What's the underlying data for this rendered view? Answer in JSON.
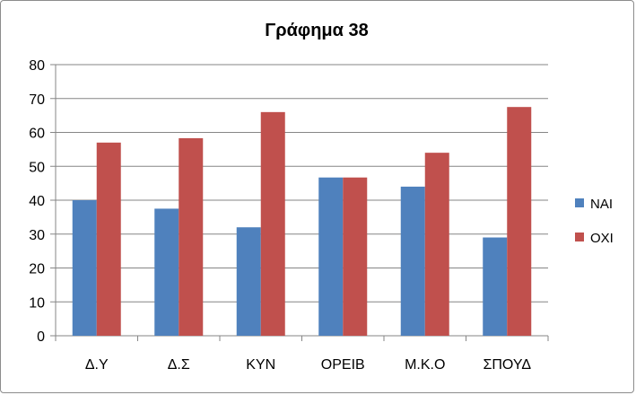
{
  "chart_data": {
    "type": "bar",
    "title": "Γράφημα 38",
    "xlabel": "",
    "ylabel": "",
    "categories": [
      "Δ.Υ",
      "Δ.Σ",
      "ΚΥΝ",
      "ΟΡΕΙΒ",
      "Μ.Κ.Ο",
      "ΣΠΟΥΔ"
    ],
    "series": [
      {
        "name": "ΝΑΙ",
        "color": "#4f81bd",
        "values": [
          40,
          37.5,
          32,
          46.7,
          44,
          29
        ]
      },
      {
        "name": "ΟΧΙ",
        "color": "#c0504d",
        "values": [
          57,
          58.3,
          66,
          46.7,
          54,
          67.5
        ]
      }
    ],
    "ylim": [
      0,
      80
    ],
    "yticks": [
      0,
      10,
      20,
      30,
      40,
      50,
      60,
      70,
      80
    ],
    "grid": true,
    "legend_position": "right"
  }
}
